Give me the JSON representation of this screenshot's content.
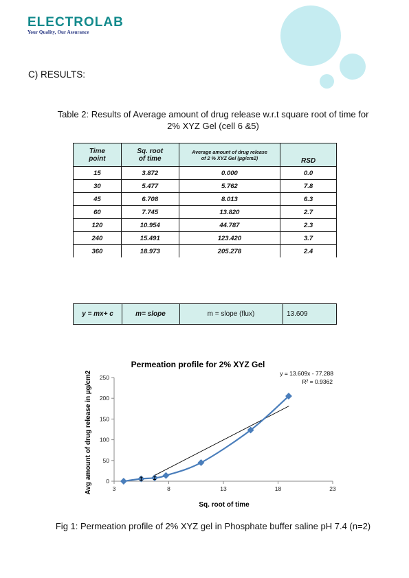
{
  "logo": {
    "name": "ELECTROLAB",
    "tagline": "Your Quality, Our Assurance"
  },
  "section_heading": "C) RESULTS:",
  "table_caption_line1": "Table 2: Results of Average amount of drug release w.r.t square root of time for",
  "table_caption_line2": "2% XYZ Gel (cell 6 &5)",
  "table": {
    "headers": {
      "time_line1": "Time",
      "time_line2": "point",
      "sqrt_line1": "Sq. root",
      "sqrt_line2": "of time",
      "avg_line1": "Average amount of drug release",
      "avg_line2": "of 2 % XYZ Gel (µg/cm2)",
      "rsd": "RSD"
    },
    "rows": [
      {
        "time": "15",
        "sqrt": "3.872",
        "avg": "0.000",
        "rsd": "0.0"
      },
      {
        "time": "30",
        "sqrt": "5.477",
        "avg": "5.762",
        "rsd": "7.8"
      },
      {
        "time": "45",
        "sqrt": "6.708",
        "avg": "8.013",
        "rsd": "6.3"
      },
      {
        "time": "60",
        "sqrt": "7.745",
        "avg": "13.820",
        "rsd": "2.7"
      },
      {
        "time": "120",
        "sqrt": "10.954",
        "avg": "44.787",
        "rsd": "2.3"
      },
      {
        "time": "240",
        "sqrt": "15.491",
        "avg": "123.420",
        "rsd": "3.7"
      },
      {
        "time": "360",
        "sqrt": "18.973",
        "avg": "205.278",
        "rsd": "2.4"
      }
    ]
  },
  "equation_row": {
    "formula": "y = mx+ c",
    "slope_label": "m= slope",
    "slope_desc": "m = slope (flux)",
    "slope_value": "13.609"
  },
  "figure_caption": "Fig 1: Permeation profile of 2% XYZ gel in Phosphate buffer saline pH 7.4 (n=2)",
  "colors": {
    "brand": "#128a8c",
    "bubble": "#c5ecf1",
    "table_fill": "#d4efec",
    "series": "#4a7ebb"
  },
  "chart_data": {
    "type": "scatter",
    "title": "Permeation profile for 2% XYZ Gel",
    "xlabel": "Sq. root of time",
    "ylabel": "Avg amount of drug release in µg/cm2",
    "xlim": [
      3,
      23
    ],
    "ylim": [
      0,
      250
    ],
    "x_ticks": [
      "3",
      "8",
      "13",
      "18",
      "23"
    ],
    "y_ticks": [
      "0",
      "50",
      "100",
      "150",
      "200",
      "250"
    ],
    "trendline_equation": "y = 13.609x - 77.288",
    "r_squared": "R² = 0.9362",
    "trendline": {
      "slope": 13.609,
      "intercept": -77.288,
      "x_from": 6.6,
      "x_to": 19
    },
    "series": [
      {
        "points": [
          {
            "x": 3.872,
            "y": 0.0
          },
          {
            "x": 5.477,
            "y": 5.762
          },
          {
            "x": 6.708,
            "y": 8.013
          },
          {
            "x": 7.745,
            "y": 13.82
          },
          {
            "x": 10.954,
            "y": 44.787
          },
          {
            "x": 15.491,
            "y": 123.42
          },
          {
            "x": 18.973,
            "y": 205.278
          }
        ]
      }
    ],
    "error_bars": [
      {
        "x": 5.477,
        "y": 5.762,
        "err": 4
      },
      {
        "x": 6.708,
        "y": 8.013,
        "err": 4
      }
    ],
    "grid": false,
    "legend": "none"
  }
}
